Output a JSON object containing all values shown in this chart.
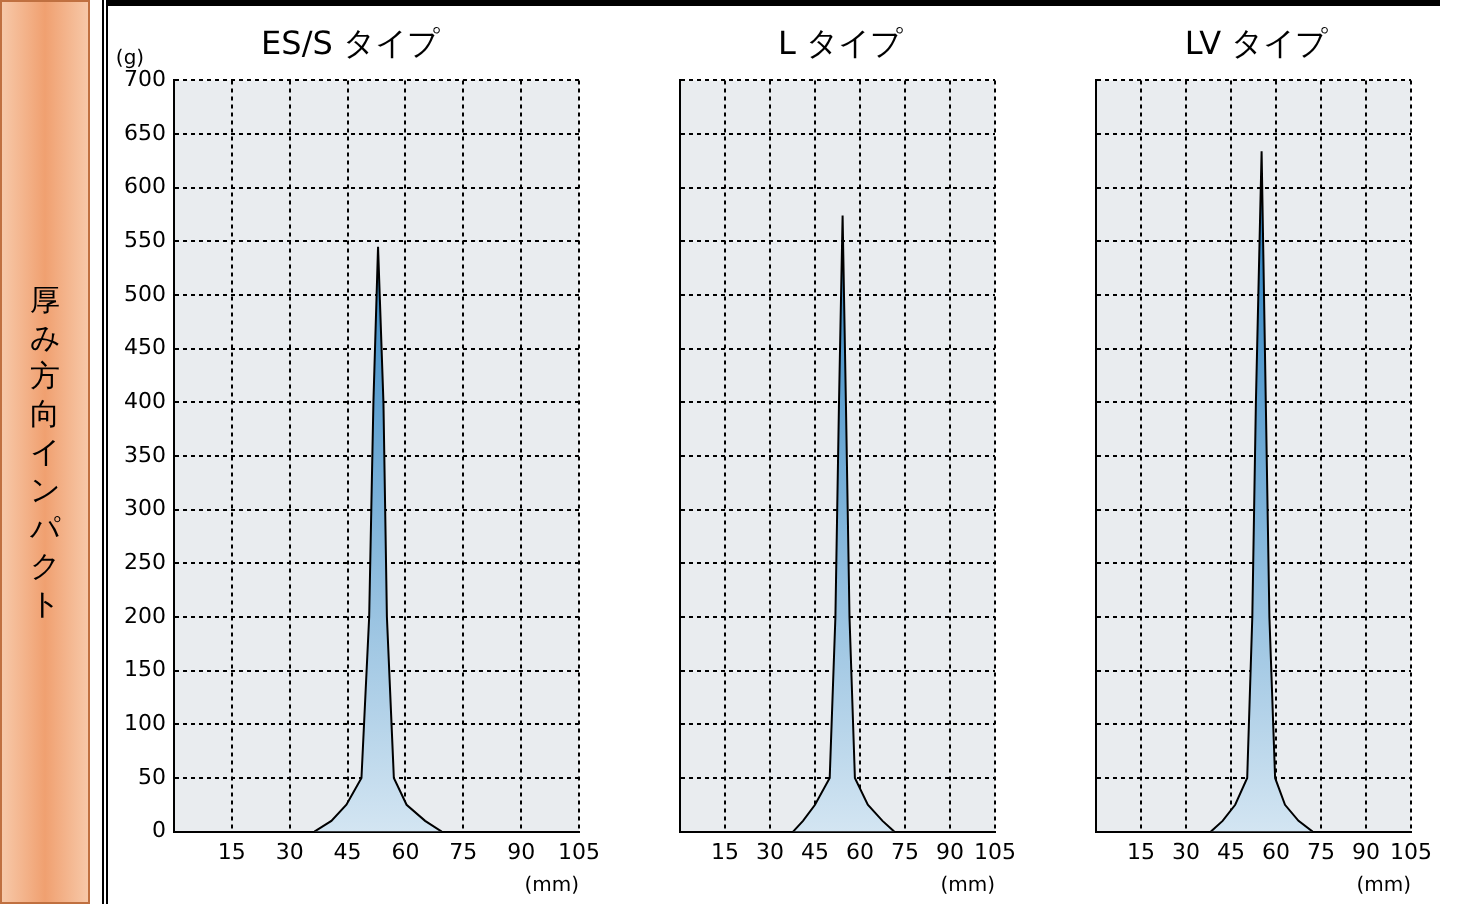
{
  "chart_data": [
    {
      "type": "other",
      "title": "厚み方向インパクト"
    },
    {
      "type": "area",
      "title": "ES/S タイプ",
      "ylabel": "(g)",
      "xlabel": "(mm)",
      "xlim": [
        0,
        105
      ],
      "xticks": [
        15,
        30,
        45,
        60,
        75,
        90,
        105
      ],
      "ylim": [
        0,
        700
      ],
      "yticks": [
        0,
        50,
        100,
        150,
        200,
        250,
        300,
        350,
        400,
        450,
        500,
        550,
        600,
        650,
        700
      ],
      "grid": true,
      "series": [
        {
          "color": "#0b6fb8",
          "x": [
            36.4,
            40.8,
            44.7,
            48.6,
            50.6,
            51.7,
            52.9,
            54.3,
            55.2,
            57,
            60.3,
            65.1,
            69.4
          ],
          "values": [
            0,
            10,
            25,
            50,
            200,
            400,
            545,
            400,
            200,
            50,
            25,
            10,
            0
          ]
        }
      ]
    },
    {
      "type": "area",
      "title": "L タイプ",
      "xlabel": "(mm)",
      "xlim": [
        0,
        105
      ],
      "xticks": [
        15,
        30,
        45,
        60,
        75,
        90,
        105
      ],
      "ylim": [
        0,
        700
      ],
      "yticks": [
        0,
        50,
        100,
        150,
        200,
        250,
        300,
        350,
        400,
        450,
        500,
        550,
        600,
        650,
        700
      ],
      "grid": true,
      "tick_labels": "x",
      "series": [
        {
          "color": "#0b6fb8",
          "x": [
            37.7,
            41,
            45,
            49.9,
            51.8,
            53,
            54.2,
            55.3,
            56.5,
            58.3,
            62.6,
            67.5,
            71.4
          ],
          "values": [
            0,
            10,
            25,
            50,
            200,
            400,
            574,
            400,
            200,
            50,
            25,
            10,
            0
          ]
        }
      ]
    },
    {
      "type": "area",
      "title": "LV タイプ",
      "xlabel": "(mm)",
      "xlim": [
        0,
        105
      ],
      "xticks": [
        15,
        30,
        45,
        60,
        75,
        90,
        105
      ],
      "ylim": [
        0,
        700
      ],
      "yticks": [
        0,
        50,
        100,
        150,
        200,
        250,
        300,
        350,
        400,
        450,
        500,
        550,
        600,
        650,
        700
      ],
      "grid": true,
      "tick_labels": "x",
      "series": [
        {
          "color": "#0b6fb8",
          "x": [
            38.3,
            42.2,
            46.4,
            50.4,
            52.1,
            53.3,
            55.2,
            56.6,
            57.8,
            59.7,
            63,
            67.5,
            72.2
          ],
          "values": [
            0,
            10,
            25,
            50,
            200,
            400,
            634,
            400,
            200,
            50,
            25,
            10,
            0
          ]
        }
      ]
    }
  ]
}
